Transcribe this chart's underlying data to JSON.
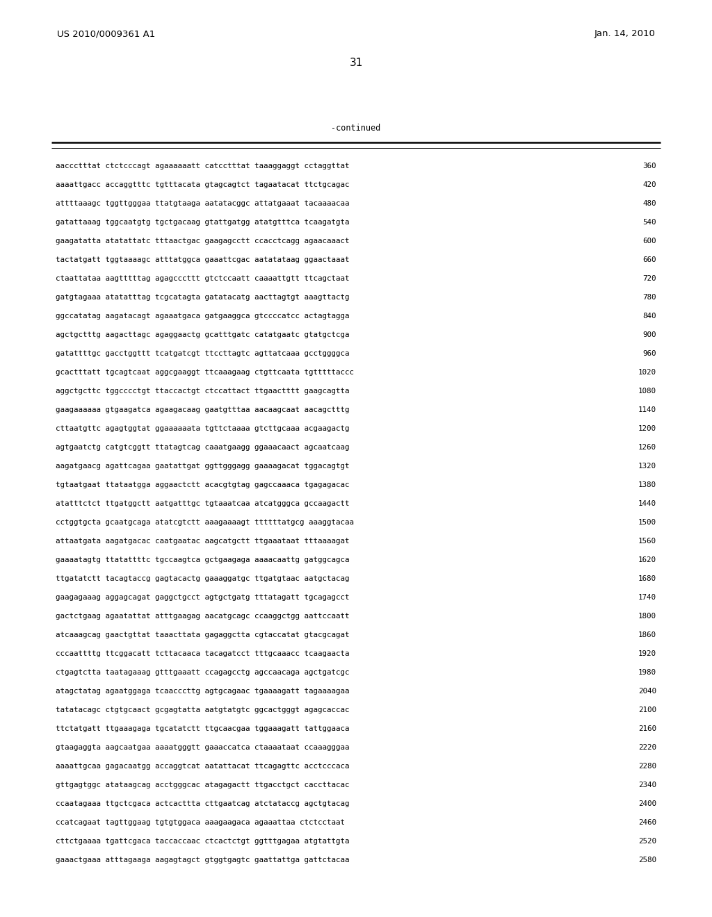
{
  "header_left": "US 2010/0009361 A1",
  "header_right": "Jan. 14, 2010",
  "page_number": "31",
  "continued_label": "-continued",
  "background_color": "#ffffff",
  "text_color": "#000000",
  "lines": [
    [
      "aaccctttat ctctcccagt agaaaaaatt catcctttat taaaggaggt cctaggttat",
      "360"
    ],
    [
      "aaaattgacc accaggtttc tgtttacata gtagcagtct tagaatacat ttctgcagac",
      "420"
    ],
    [
      "attttaaagc tggttgggaa ttatgtaaga aatatacggc attatgaaat tacaaaacaa",
      "480"
    ],
    [
      "gatattaaag tggcaatgtg tgctgacaag gtattgatgg atatgtttca tcaagatgta",
      "540"
    ],
    [
      "gaagatatta atatattatc tttaactgac gaagagcctt ccacctcagg agaacaaact",
      "600"
    ],
    [
      "tactatgatt tggtaaaagc atttatggca gaaattcgac aatatataag ggaactaaat",
      "660"
    ],
    [
      "ctaattataa aagtttttag agagcccttt gtctccaatt caaaattgtt ttcagctaat",
      "720"
    ],
    [
      "gatgtagaaa atatatttag tcgcatagta gatatacatg aacttagtgt aaagttactg",
      "780"
    ],
    [
      "ggccatatag aagatacagt agaaatgaca gatgaaggca gtccccatcc actagtagga",
      "840"
    ],
    [
      "agctgctttg aagacttagc agaggaactg gcatttgatc catatgaatc gtatgctcga",
      "900"
    ],
    [
      "gatattttgc gacctggttt tcatgatcgt ttccttagtc agttatcaaa gcctggggca",
      "960"
    ],
    [
      "gcactttatt tgcagtcaat aggcgaaggt ttcaaagaag ctgttcaata tgtttttaccc",
      "1020"
    ],
    [
      "aggctgcttc tggcccctgt ttaccactgt ctccattact ttgaactttt gaagcagtta",
      "1080"
    ],
    [
      "gaagaaaaaa gtgaagatca agaagacaag gaatgtttaa aacaagcaat aacagctttg",
      "1140"
    ],
    [
      "cttaatgttc agagtggtat ggaaaaaata tgttctaaaa gtcttgcaaa acgaagactg",
      "1200"
    ],
    [
      "agtgaatctg catgtcggtt ttatagtcag caaatgaagg ggaaacaact agcaatcaag",
      "1260"
    ],
    [
      "aagatgaacg agattcagaa gaatattgat ggttgggagg gaaaagacat tggacagtgt",
      "1320"
    ],
    [
      "tgtaatgaat ttataatgga aggaactctt acacgtgtag gagccaaaca tgagagacac",
      "1380"
    ],
    [
      "atatttctct ttgatggctt aatgatttgc tgtaaatcaa atcatgggca gccaagactt",
      "1440"
    ],
    [
      "cctggtgcta gcaatgcaga atatcgtctt aaagaaaagt ttttttatgcg aaaggtacaa",
      "1500"
    ],
    [
      "attaatgata aagatgacac caatgaatac aagcatgctt ttgaaataat tttaaaagat",
      "1560"
    ],
    [
      "gaaaatagtg ttatattttc tgccaagtca gctgaagaga aaaacaattg gatggcagca",
      "1620"
    ],
    [
      "ttgatatctt tacagtaccg gagtacactg gaaaggatgc ttgatgtaac aatgctacag",
      "1680"
    ],
    [
      "gaagagaaag aggagcagat gaggctgcct agtgctgatg tttatagatt tgcagagcct",
      "1740"
    ],
    [
      "gactctgaag agaatattat atttgaagag aacatgcagc ccaaggctgg aattccaatt",
      "1800"
    ],
    [
      "atcaaagcag gaactgttat taaacttata gagaggctta cgtaccatat gtacgcagat",
      "1860"
    ],
    [
      "cccaattttg ttcggacatt tcttacaaca tacagatcct tttgcaaacc tcaagaacta",
      "1920"
    ],
    [
      "ctgagtctta taatagaaag gtttgaaatt ccagagcctg agccaacaga agctgatcgc",
      "1980"
    ],
    [
      "atagctatag agaatggaga tcaacccttg agtgcagaac tgaaaagatt tagaaaagaa",
      "2040"
    ],
    [
      "tatatacagc ctgtgcaact gcgagtatta aatgtatgtc ggcactgggt agagcaccac",
      "2100"
    ],
    [
      "ttctatgatt ttgaaagaga tgcatatctt ttgcaacgaa tggaaagatt tattggaaca",
      "2160"
    ],
    [
      "gtaagaggta aagcaatgaa aaaatgggtt gaaaccatca ctaaaataat ccaaagggaa",
      "2220"
    ],
    [
      "aaaattgcaa gagacaatgg accaggtcat aatattacat ttcagagttc acctcccaca",
      "2280"
    ],
    [
      "gttgagtggc atataagcag acctgggcac atagagactt ttgacctgct caccttacac",
      "2340"
    ],
    [
      "ccaatagaaa ttgctcgaca actcacttta cttgaatcag atctataccg agctgtacag",
      "2400"
    ],
    [
      "ccatcagaat tagttggaag tgtgtggaca aaagaagaca agaaattaa ctctcctaat",
      "2460"
    ],
    [
      "cttctgaaaa tgattcgaca taccaccaac ctcactctgt ggtttgagaa atgtattgta",
      "2520"
    ],
    [
      "gaaactgaaa atttagaaga aagagtagct gtggtgagtc gaattattga gattctacaa",
      "2580"
    ]
  ]
}
